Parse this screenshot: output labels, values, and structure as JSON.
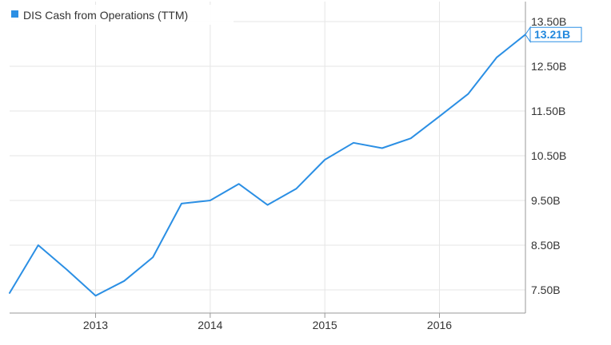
{
  "chart_data": {
    "type": "line",
    "title": "",
    "xlabel": "",
    "ylabel": "",
    "x_ticks": [
      "2013",
      "2014",
      "2015",
      "2016"
    ],
    "y_ticks": [
      "7.50B",
      "8.50B",
      "9.50B",
      "10.50B",
      "11.50B",
      "12.50B",
      "13.50B"
    ],
    "ylim": [
      7.0,
      13.75
    ],
    "xlim": [
      2012.25,
      2016.75
    ],
    "grid": true,
    "legend_position": "top-left",
    "series": [
      {
        "name": "DIS Cash from Operations (TTM)",
        "color": "#2b8fe4",
        "x": [
          2012.25,
          2012.5,
          2012.75,
          2013.0,
          2013.25,
          2013.5,
          2013.75,
          2014.0,
          2014.25,
          2014.5,
          2014.75,
          2015.0,
          2015.25,
          2015.5,
          2015.75,
          2016.0,
          2016.25,
          2016.5,
          2016.75
        ],
        "y": [
          7.43,
          8.5,
          7.95,
          7.37,
          7.7,
          8.23,
          9.43,
          9.5,
          9.87,
          9.4,
          9.76,
          10.41,
          10.79,
          10.67,
          10.89,
          11.38,
          11.88,
          12.7,
          13.21
        ]
      }
    ],
    "last_value_label": "13.21B"
  }
}
